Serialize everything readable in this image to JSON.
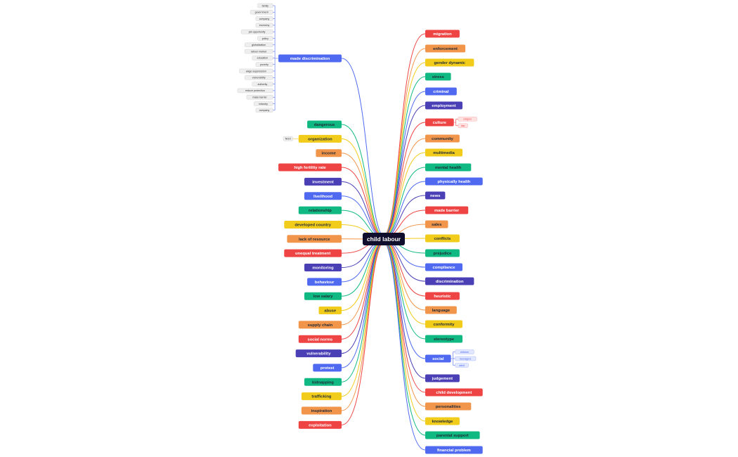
{
  "center": "child labour",
  "left": [
    {
      "label": "made discrimination",
      "children": [
        "family",
        "government",
        "company",
        "economy",
        "job opportunity",
        "policy",
        "globalization",
        "labour market",
        "education",
        "poverty",
        "wage suppression",
        "vulnerability",
        "authority",
        "reduce protection",
        "made barrier",
        "industry",
        "company"
      ]
    },
    {
      "label": "dangerous"
    },
    {
      "label": "organization",
      "children": [
        "NGO"
      ]
    },
    {
      "label": "income"
    },
    {
      "label": "high fertility rate"
    },
    {
      "label": "investment"
    },
    {
      "label": "livelihood"
    },
    {
      "label": "relationship"
    },
    {
      "label": "developed country"
    },
    {
      "label": "lack of resource"
    },
    {
      "label": "unequal treatment"
    },
    {
      "label": "monitoring"
    },
    {
      "label": "behaviour"
    },
    {
      "label": "low salary"
    },
    {
      "label": "abuse"
    },
    {
      "label": "supply chain"
    },
    {
      "label": "social norms"
    },
    {
      "label": "vulnerability"
    },
    {
      "label": "protest"
    },
    {
      "label": "kidnapping"
    },
    {
      "label": "trafficking"
    },
    {
      "label": "inspiration"
    },
    {
      "label": "exploitation"
    }
  ],
  "right": [
    {
      "label": "migration"
    },
    {
      "label": "enforcement"
    },
    {
      "label": "gender dynamic"
    },
    {
      "label": "stress"
    },
    {
      "label": "criminal"
    },
    {
      "label": "employment"
    },
    {
      "label": "culture",
      "children": [
        "religion",
        "law"
      ]
    },
    {
      "label": "community"
    },
    {
      "label": "multimedia"
    },
    {
      "label": "mental health"
    },
    {
      "label": "physically health"
    },
    {
      "label": "news"
    },
    {
      "label": "made barrier"
    },
    {
      "label": "sales"
    },
    {
      "label": "conflicts"
    },
    {
      "label": "prejudice"
    },
    {
      "label": "compliance"
    },
    {
      "label": "discrimination"
    },
    {
      "label": "heuristic"
    },
    {
      "label": "language"
    },
    {
      "label": "conformity"
    },
    {
      "label": "stereotype"
    },
    {
      "label": "social",
      "children": [
        "children",
        "teenagers",
        "adult"
      ]
    },
    {
      "label": "judgement"
    },
    {
      "label": "child development"
    },
    {
      "label": "personalities"
    },
    {
      "label": "knowledge"
    },
    {
      "label": "parental support"
    },
    {
      "label": "financial problem"
    }
  ]
}
